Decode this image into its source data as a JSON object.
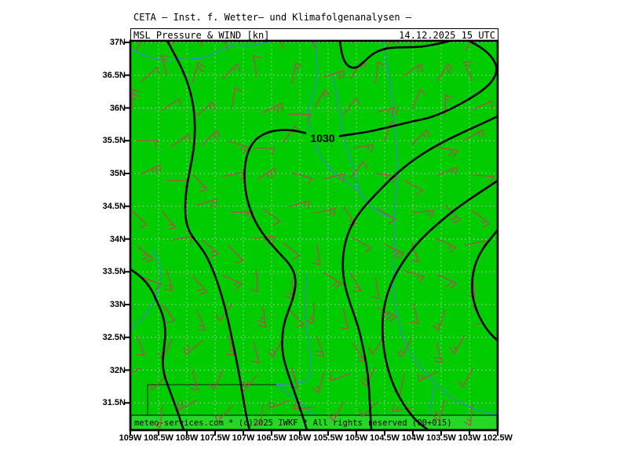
{
  "header": {
    "title": "CETA – Inst. f. Wetter– und Klimafolgenanalysen –",
    "field": "MSL_Pressure_&_WIND_[kn]",
    "datetime": "14.12.2025 15 UTC"
  },
  "map": {
    "pressure_label": "1030",
    "copyright": "meteo-services.com * (c)2025 IWKF * All rights reserved (00+015)"
  },
  "axes": {
    "lat_labels": [
      "37N",
      "36.5N",
      "36N",
      "35.5N",
      "35N",
      "34.5N",
      "34N",
      "33.5N",
      "33N",
      "32.5N",
      "32N",
      "31.5N"
    ],
    "lon_labels": [
      "109W",
      "108.5W",
      "108W",
      "107.5W",
      "107W",
      "106.5W",
      "106W",
      "105.5W",
      "105W",
      "104.5W",
      "104W",
      "103.5W",
      "103W",
      "102.5W"
    ]
  },
  "colors": {
    "land": "#00cc00",
    "bar_bg": "#25d825",
    "contour": "#000000",
    "river": "#3a87cf",
    "barb": "#b24d4d",
    "grid": "#c6c6c6",
    "frame": "#000000",
    "text": "#000000"
  }
}
